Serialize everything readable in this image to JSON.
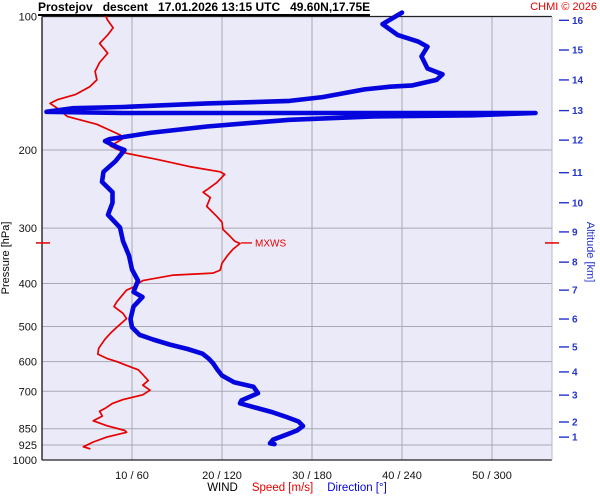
{
  "header": {
    "title": "Prostejov   descent   17.01.2026 13:15 UTC   49.60N,17.75E",
    "copyright": "CHMI © 2026"
  },
  "axes": {
    "left_label": "Pressure [hPa]",
    "right_label": "Altitude [km]",
    "bottom_group_label": "WIND",
    "speed_label": "Speed [m/s]",
    "direction_label": "Direction [°]",
    "pressure_ticks": [
      100,
      200,
      300,
      400,
      500,
      600,
      700,
      850,
      925,
      1000
    ],
    "wind_ticks": [
      {
        "label": "10 / 60",
        "speed": 10
      },
      {
        "label": "20 / 120",
        "speed": 20
      },
      {
        "label": "30 / 180",
        "speed": 30
      },
      {
        "label": "40 / 240",
        "speed": 40
      },
      {
        "label": "50 / 300",
        "speed": 50
      }
    ],
    "altitude_ticks": [
      {
        "km": 1,
        "p": 888
      },
      {
        "km": 2,
        "p": 821
      },
      {
        "km": 3,
        "p": 714
      },
      {
        "km": 4,
        "p": 633
      },
      {
        "km": 5,
        "p": 556
      },
      {
        "km": 6,
        "p": 481
      },
      {
        "km": 7,
        "p": 414
      },
      {
        "km": 8,
        "p": 358
      },
      {
        "km": 9,
        "p": 306
      },
      {
        "km": 10,
        "p": 263
      },
      {
        "km": 11,
        "p": 225
      },
      {
        "km": 12,
        "p": 190
      },
      {
        "km": 13,
        "p": 163
      },
      {
        "km": 14,
        "p": 139
      },
      {
        "km": 15,
        "p": 119
      },
      {
        "km": 16,
        "p": 102
      }
    ]
  },
  "annotations": {
    "mxws_label": "MXWS",
    "mxws_pressure_hpa": 324,
    "mxws_speed_ms": 22
  },
  "colors": {
    "speed": "#e60000",
    "direction": "#0505dd",
    "altitude_axis": "#2233cc",
    "grid": "#a9a9b6",
    "plot_bg": "#eaeaf8",
    "border_dark": "#222222",
    "border_light": "#b9b9c4",
    "text": "#111111"
  },
  "chart_data": {
    "type": "line",
    "title": "Prostejov descent 17.01.2026 13:15 UTC 49.60N,17.75E",
    "xlabel": "WIND Speed [m/s] / Direction [°]",
    "ylabel": "Pressure [hPa]",
    "y_axis": {
      "scale": "log",
      "range_hpa": [
        100,
        1000
      ]
    },
    "x_axis": {
      "speed_range_ms": [
        0,
        56.7
      ],
      "direction_range_deg": [
        0,
        340
      ]
    },
    "legend_position": "bottom",
    "grid": true,
    "series": [
      {
        "name": "Speed [m/s]",
        "units": "m/s",
        "color": "#e60000",
        "points": [
          [
            99,
            7.0
          ],
          [
            102,
            7.3
          ],
          [
            106,
            7.9
          ],
          [
            110,
            7.3
          ],
          [
            115,
            6.4
          ],
          [
            121,
            7.3
          ],
          [
            127,
            6.4
          ],
          [
            133,
            5.9
          ],
          [
            139,
            6.1
          ],
          [
            144,
            5.3
          ],
          [
            150,
            3.7
          ],
          [
            154,
            1.7
          ],
          [
            157,
            0.9
          ],
          [
            161,
            1.7
          ],
          [
            168,
            2.8
          ],
          [
            175,
            6.1
          ],
          [
            185,
            8.7
          ],
          [
            189,
            8.9
          ],
          [
            196,
            7.6
          ],
          [
            203,
            9.2
          ],
          [
            210,
            12.8
          ],
          [
            218,
            16.4
          ],
          [
            224,
            19.8
          ],
          [
            227,
            20.3
          ],
          [
            237,
            19.4
          ],
          [
            246,
            18.3
          ],
          [
            249,
            17.9
          ],
          [
            256,
            18.7
          ],
          [
            268,
            18.3
          ],
          [
            282,
            19.4
          ],
          [
            291,
            20.0
          ],
          [
            302,
            20.1
          ],
          [
            313,
            20.9
          ],
          [
            321,
            21.4
          ],
          [
            325,
            22.0
          ],
          [
            335,
            21.2
          ],
          [
            346,
            20.6
          ],
          [
            360,
            20.0
          ],
          [
            373,
            19.8
          ],
          [
            379,
            19.0
          ],
          [
            383,
            14.6
          ],
          [
            394,
            11.2
          ],
          [
            408,
            10.1
          ],
          [
            414,
            9.4
          ],
          [
            440,
            8.3
          ],
          [
            451,
            8.0
          ],
          [
            467,
            9.0
          ],
          [
            480,
            9.4
          ],
          [
            500,
            8.4
          ],
          [
            518,
            7.6
          ],
          [
            534,
            7.0
          ],
          [
            560,
            6.3
          ],
          [
            577,
            6.2
          ],
          [
            590,
            7.2
          ],
          [
            600,
            8.3
          ],
          [
            615,
            9.7
          ],
          [
            626,
            10.7
          ],
          [
            642,
            11.2
          ],
          [
            662,
            11.8
          ],
          [
            678,
            11.2
          ],
          [
            696,
            12.0
          ],
          [
            713,
            11.2
          ],
          [
            731,
            9.0
          ],
          [
            746,
            7.8
          ],
          [
            765,
            7.0
          ],
          [
            776,
            6.4
          ],
          [
            796,
            6.7
          ],
          [
            816,
            5.7
          ],
          [
            837,
            7.2
          ],
          [
            858,
            9.2
          ],
          [
            866,
            9.4
          ],
          [
            888,
            7.2
          ],
          [
            911,
            5.7
          ],
          [
            934,
            4.6
          ],
          [
            943,
            5.3
          ]
        ]
      },
      {
        "name": "Direction [°]",
        "units": "deg",
        "color": "#0505dd",
        "points": [
          [
            98,
            240
          ],
          [
            104,
            227
          ],
          [
            110,
            237
          ],
          [
            114,
            251
          ],
          [
            117,
            257
          ],
          [
            123,
            253
          ],
          [
            131,
            257
          ],
          [
            135,
            267
          ],
          [
            139,
            263
          ],
          [
            143,
            247
          ],
          [
            144,
            232
          ],
          [
            146,
            215
          ],
          [
            152,
            187
          ],
          [
            155,
            165
          ],
          [
            156,
            139
          ],
          [
            157,
            110
          ],
          [
            160,
            54
          ],
          [
            161,
            21
          ],
          [
            164,
            3
          ],
          [
            165,
            54
          ],
          [
            165,
            139
          ],
          [
            165,
            220
          ],
          [
            165,
            280
          ],
          [
            165,
            329
          ],
          [
            167,
            287
          ],
          [
            168,
            221
          ],
          [
            171,
            165
          ],
          [
            177,
            110
          ],
          [
            183,
            72
          ],
          [
            189,
            45
          ],
          [
            191,
            42
          ],
          [
            197,
            50
          ],
          [
            200,
            55
          ],
          [
            212,
            49
          ],
          [
            224,
            41
          ],
          [
            236,
            40
          ],
          [
            249,
            47
          ],
          [
            263,
            47
          ],
          [
            280,
            44
          ],
          [
            299,
            52
          ],
          [
            321,
            54
          ],
          [
            346,
            58
          ],
          [
            372,
            60
          ],
          [
            394,
            64
          ],
          [
            418,
            61
          ],
          [
            429,
            67
          ],
          [
            451,
            61
          ],
          [
            481,
            59
          ],
          [
            502,
            60
          ],
          [
            522,
            65
          ],
          [
            535,
            74
          ],
          [
            549,
            85
          ],
          [
            562,
            97
          ],
          [
            576,
            107
          ],
          [
            590,
            111
          ],
          [
            605,
            114
          ],
          [
            626,
            117
          ],
          [
            645,
            120
          ],
          [
            668,
            128
          ],
          [
            684,
            141
          ],
          [
            707,
            144
          ],
          [
            734,
            133
          ],
          [
            745,
            132
          ],
          [
            763,
            143
          ],
          [
            781,
            154
          ],
          [
            800,
            163
          ],
          [
            819,
            171
          ],
          [
            838,
            174
          ],
          [
            858,
            170
          ],
          [
            879,
            162
          ],
          [
            900,
            154
          ],
          [
            917,
            152
          ],
          [
            921,
            155
          ]
        ]
      }
    ]
  }
}
